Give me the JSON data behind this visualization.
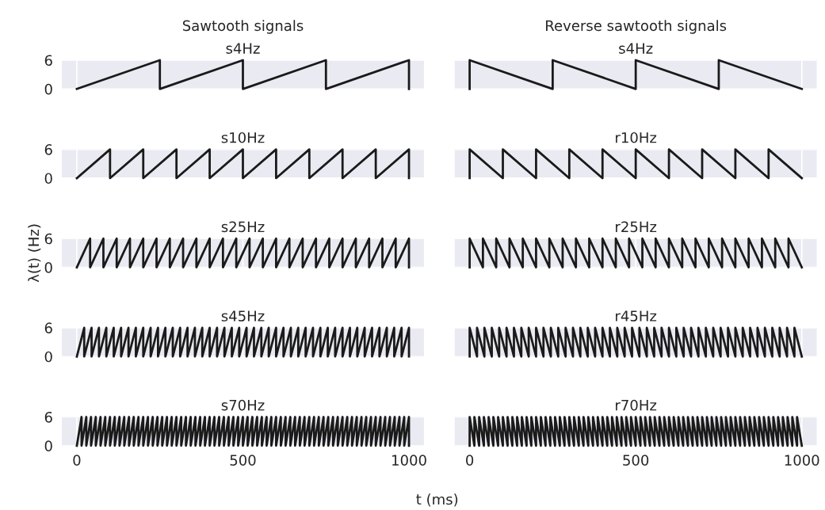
{
  "chart_data": [
    {
      "type": "line",
      "title": "Sawtooth signals",
      "subtitle": "s4Hz",
      "xlim": [
        -45,
        1045
      ],
      "ylim": [
        0,
        6
      ],
      "xticks": [
        0,
        500,
        1000
      ],
      "yticks": [
        0,
        6
      ],
      "grid": true,
      "tick_labels": "y",
      "series": [
        {
          "color": "#1a1a1a",
          "x": [
            0,
            250,
            250,
            500,
            500,
            750,
            750,
            1000,
            1000
          ],
          "values": [
            0,
            6,
            0,
            6,
            0,
            6,
            0,
            6,
            0
          ]
        }
      ]
    },
    {
      "type": "line",
      "title": "Reverse sawtooth signals",
      "subtitle": "s4Hz",
      "xlim": [
        -45,
        1045
      ],
      "ylim": [
        0,
        6
      ],
      "xticks": [
        0,
        500,
        1000
      ],
      "yticks": [
        0,
        6
      ],
      "grid": true,
      "tick_labels": false,
      "series": [
        {
          "color": "#1a1a1a",
          "x": [
            0,
            0,
            250,
            250,
            500,
            500,
            750,
            750,
            1000
          ],
          "values": [
            0,
            6,
            0,
            6,
            0,
            6,
            0,
            6,
            0
          ]
        }
      ]
    },
    {
      "type": "line",
      "title": "s10Hz",
      "xlim": [
        -45,
        1045
      ],
      "ylim": [
        0,
        6
      ],
      "xticks": [
        0,
        500,
        1000
      ],
      "yticks": [
        0,
        6
      ],
      "grid": true,
      "tick_labels": "y",
      "series": [
        {
          "color": "#1a1a1a",
          "x": [
            0,
            100,
            100,
            200,
            200,
            300,
            300,
            400,
            400,
            500,
            500,
            600,
            600,
            700,
            700,
            800,
            800,
            900,
            900,
            1000,
            1000
          ],
          "values": [
            0,
            6,
            0,
            6,
            0,
            6,
            0,
            6,
            0,
            6,
            0,
            6,
            0,
            6,
            0,
            6,
            0,
            6,
            0,
            6,
            0
          ]
        }
      ]
    },
    {
      "type": "line",
      "title": "r10Hz",
      "xlim": [
        -45,
        1045
      ],
      "ylim": [
        0,
        6
      ],
      "xticks": [
        0,
        500,
        1000
      ],
      "yticks": [
        0,
        6
      ],
      "grid": true,
      "tick_labels": false,
      "series": [
        {
          "color": "#1a1a1a",
          "x": [
            0,
            0,
            100,
            100,
            200,
            200,
            300,
            300,
            400,
            400,
            500,
            500,
            600,
            600,
            700,
            700,
            800,
            800,
            900,
            900,
            1000
          ],
          "values": [
            0,
            6,
            0,
            6,
            0,
            6,
            0,
            6,
            0,
            6,
            0,
            6,
            0,
            6,
            0,
            6,
            0,
            6,
            0,
            6,
            0
          ]
        }
      ]
    },
    {
      "type": "line",
      "title": "s25Hz",
      "ylabel": "λ(t) (Hz)",
      "xlim": [
        -45,
        1045
      ],
      "ylim": [
        0,
        6
      ],
      "xticks": [
        0,
        500,
        1000
      ],
      "yticks": [
        0,
        6
      ],
      "grid": true,
      "tick_labels": "y",
      "series": [
        {
          "color": "#1a1a1a",
          "x": [
            0,
            40,
            40,
            80,
            80,
            120,
            120,
            160,
            160,
            200,
            200,
            240,
            240,
            280,
            280,
            320,
            320,
            360,
            360,
            400,
            400,
            440,
            440,
            480,
            480,
            520,
            520,
            560,
            560,
            600,
            600,
            640,
            640,
            680,
            680,
            720,
            720,
            760,
            760,
            800,
            800,
            840,
            840,
            880,
            880,
            920,
            920,
            960,
            960,
            1000,
            1000
          ],
          "values": [
            0,
            6,
            0,
            6,
            0,
            6,
            0,
            6,
            0,
            6,
            0,
            6,
            0,
            6,
            0,
            6,
            0,
            6,
            0,
            6,
            0,
            6,
            0,
            6,
            0,
            6,
            0,
            6,
            0,
            6,
            0,
            6,
            0,
            6,
            0,
            6,
            0,
            6,
            0,
            6,
            0,
            6,
            0,
            6,
            0,
            6,
            0,
            6,
            0,
            6,
            0
          ]
        }
      ]
    },
    {
      "type": "line",
      "title": "r25Hz",
      "xlim": [
        -45,
        1045
      ],
      "ylim": [
        0,
        6
      ],
      "xticks": [
        0,
        500,
        1000
      ],
      "yticks": [
        0,
        6
      ],
      "grid": true,
      "tick_labels": false,
      "series": [
        {
          "color": "#1a1a1a",
          "x": [
            0,
            0,
            40,
            40,
            80,
            80,
            120,
            120,
            160,
            160,
            200,
            200,
            240,
            240,
            280,
            280,
            320,
            320,
            360,
            360,
            400,
            400,
            440,
            440,
            480,
            480,
            520,
            520,
            560,
            560,
            600,
            600,
            640,
            640,
            680,
            680,
            720,
            720,
            760,
            760,
            800,
            800,
            840,
            840,
            880,
            880,
            920,
            920,
            960,
            960,
            1000
          ],
          "values": [
            0,
            6,
            0,
            6,
            0,
            6,
            0,
            6,
            0,
            6,
            0,
            6,
            0,
            6,
            0,
            6,
            0,
            6,
            0,
            6,
            0,
            6,
            0,
            6,
            0,
            6,
            0,
            6,
            0,
            6,
            0,
            6,
            0,
            6,
            0,
            6,
            0,
            6,
            0,
            6,
            0,
            6,
            0,
            6,
            0,
            6,
            0,
            6,
            0,
            6,
            0
          ]
        }
      ]
    },
    {
      "type": "line",
      "title": "s45Hz",
      "xlim": [
        -45,
        1045
      ],
      "ylim": [
        0,
        6
      ],
      "xticks": [
        0,
        500,
        1000
      ],
      "yticks": [
        0,
        6
      ],
      "grid": true,
      "tick_labels": "y",
      "series": [
        {
          "color": "#1a1a1a",
          "x": [
            0,
            22.22,
            22.22,
            44.44,
            44.44,
            66.67,
            66.67,
            88.89,
            88.89,
            111.11,
            111.11,
            133.33,
            133.33,
            155.56,
            155.56,
            177.78,
            177.78,
            200,
            200,
            222.22,
            222.22,
            244.44,
            244.44,
            266.67,
            266.67,
            288.89,
            288.89,
            311.11,
            311.11,
            333.33,
            333.33,
            355.56,
            355.56,
            377.78,
            377.78,
            400,
            400,
            422.22,
            422.22,
            444.44,
            444.44,
            466.67,
            466.67,
            488.89,
            488.89,
            511.11,
            511.11,
            533.33,
            533.33,
            555.56,
            555.56,
            577.78,
            577.78,
            600,
            600,
            622.22,
            622.22,
            644.44,
            644.44,
            666.67,
            666.67,
            688.89,
            688.89,
            711.11,
            711.11,
            733.33,
            733.33,
            755.56,
            755.56,
            777.78,
            777.78,
            800,
            800,
            822.22,
            822.22,
            844.44,
            844.44,
            866.67,
            866.67,
            888.89,
            888.89,
            911.11,
            911.11,
            933.33,
            933.33,
            955.56,
            955.56,
            977.78,
            977.78,
            1000,
            1000
          ],
          "values": [
            0,
            6,
            0,
            6,
            0,
            6,
            0,
            6,
            0,
            6,
            0,
            6,
            0,
            6,
            0,
            6,
            0,
            6,
            0,
            6,
            0,
            6,
            0,
            6,
            0,
            6,
            0,
            6,
            0,
            6,
            0,
            6,
            0,
            6,
            0,
            6,
            0,
            6,
            0,
            6,
            0,
            6,
            0,
            6,
            0,
            6,
            0,
            6,
            0,
            6,
            0,
            6,
            0,
            6,
            0,
            6,
            0,
            6,
            0,
            6,
            0,
            6,
            0,
            6,
            0,
            6,
            0,
            6,
            0,
            6,
            0,
            6,
            0,
            6,
            0,
            6,
            0,
            6,
            0,
            6,
            0,
            6,
            0,
            6,
            0,
            6,
            0,
            6,
            0,
            6,
            0
          ]
        }
      ]
    },
    {
      "type": "line",
      "title": "r45Hz",
      "xlim": [
        -45,
        1045
      ],
      "ylim": [
        0,
        6
      ],
      "xticks": [
        0,
        500,
        1000
      ],
      "yticks": [
        0,
        6
      ],
      "grid": true,
      "tick_labels": false,
      "series": [
        {
          "color": "#1a1a1a",
          "x": [
            0,
            0,
            22.22,
            22.22,
            44.44,
            44.44,
            66.67,
            66.67,
            88.89,
            88.89,
            111.11,
            111.11,
            133.33,
            133.33,
            155.56,
            155.56,
            177.78,
            177.78,
            200,
            200,
            222.22,
            222.22,
            244.44,
            244.44,
            266.67,
            266.67,
            288.89,
            288.89,
            311.11,
            311.11,
            333.33,
            333.33,
            355.56,
            355.56,
            377.78,
            377.78,
            400,
            400,
            422.22,
            422.22,
            444.44,
            444.44,
            466.67,
            466.67,
            488.89,
            488.89,
            511.11,
            511.11,
            533.33,
            533.33,
            555.56,
            555.56,
            577.78,
            577.78,
            600,
            600,
            622.22,
            622.22,
            644.44,
            644.44,
            666.67,
            666.67,
            688.89,
            688.89,
            711.11,
            711.11,
            733.33,
            733.33,
            755.56,
            755.56,
            777.78,
            777.78,
            800,
            800,
            822.22,
            822.22,
            844.44,
            844.44,
            866.67,
            866.67,
            888.89,
            888.89,
            911.11,
            911.11,
            933.33,
            933.33,
            955.56,
            955.56,
            977.78,
            977.78,
            1000
          ],
          "values": [
            0,
            6,
            0,
            6,
            0,
            6,
            0,
            6,
            0,
            6,
            0,
            6,
            0,
            6,
            0,
            6,
            0,
            6,
            0,
            6,
            0,
            6,
            0,
            6,
            0,
            6,
            0,
            6,
            0,
            6,
            0,
            6,
            0,
            6,
            0,
            6,
            0,
            6,
            0,
            6,
            0,
            6,
            0,
            6,
            0,
            6,
            0,
            6,
            0,
            6,
            0,
            6,
            0,
            6,
            0,
            6,
            0,
            6,
            0,
            6,
            0,
            6,
            0,
            6,
            0,
            6,
            0,
            6,
            0,
            6,
            0,
            6,
            0,
            6,
            0,
            6,
            0,
            6,
            0,
            6,
            0,
            6,
            0,
            6,
            0,
            6,
            0,
            6,
            0,
            6,
            0
          ]
        }
      ]
    },
    {
      "type": "line",
      "title": "s70Hz",
      "xlabel": "t (ms)",
      "xlim": [
        -45,
        1045
      ],
      "ylim": [
        0,
        6
      ],
      "xticks": [
        0,
        500,
        1000
      ],
      "yticks": [
        0,
        6
      ],
      "grid": true,
      "series": [
        {
          "color": "#1a1a1a",
          "x": [
            0,
            14.29,
            14.29,
            28.57,
            28.57,
            42.86,
            42.86,
            57.14,
            57.14,
            71.43,
            71.43,
            85.71,
            85.71,
            100,
            100,
            114.29,
            114.29,
            128.57,
            128.57,
            142.86,
            142.86,
            157.14,
            157.14,
            171.43,
            171.43,
            185.71,
            185.71,
            200,
            200,
            214.29,
            214.29,
            228.57,
            228.57,
            242.86,
            242.86,
            257.14,
            257.14,
            271.43,
            271.43,
            285.71,
            285.71,
            300,
            300,
            314.29,
            314.29,
            328.57,
            328.57,
            342.86,
            342.86,
            357.14,
            357.14,
            371.43,
            371.43,
            385.71,
            385.71,
            400,
            400,
            414.29,
            414.29,
            428.57,
            428.57,
            442.86,
            442.86,
            457.14,
            457.14,
            471.43,
            471.43,
            485.71,
            485.71,
            500,
            500,
            514.29,
            514.29,
            528.57,
            528.57,
            542.86,
            542.86,
            557.14,
            557.14,
            571.43,
            571.43,
            585.71,
            585.71,
            600,
            600,
            614.29,
            614.29,
            628.57,
            628.57,
            642.86,
            642.86,
            657.14,
            657.14,
            671.43,
            671.43,
            685.71,
            685.71,
            700,
            700,
            714.29,
            714.29,
            728.57,
            728.57,
            742.86,
            742.86,
            757.14,
            757.14,
            771.43,
            771.43,
            785.71,
            785.71,
            800,
            800,
            814.29,
            814.29,
            828.57,
            828.57,
            842.86,
            842.86,
            857.14,
            857.14,
            871.43,
            871.43,
            885.71,
            885.71,
            900,
            900,
            914.29,
            914.29,
            928.57,
            928.57,
            942.86,
            942.86,
            957.14,
            957.14,
            971.43,
            971.43,
            985.71,
            985.71,
            1000,
            1000
          ],
          "values": [
            0,
            6,
            0,
            6,
            0,
            6,
            0,
            6,
            0,
            6,
            0,
            6,
            0,
            6,
            0,
            6,
            0,
            6,
            0,
            6,
            0,
            6,
            0,
            6,
            0,
            6,
            0,
            6,
            0,
            6,
            0,
            6,
            0,
            6,
            0,
            6,
            0,
            6,
            0,
            6,
            0,
            6,
            0,
            6,
            0,
            6,
            0,
            6,
            0,
            6,
            0,
            6,
            0,
            6,
            0,
            6,
            0,
            6,
            0,
            6,
            0,
            6,
            0,
            6,
            0,
            6,
            0,
            6,
            0,
            6,
            0,
            6,
            0,
            6,
            0,
            6,
            0,
            6,
            0,
            6,
            0,
            6,
            0,
            6,
            0,
            6,
            0,
            6,
            0,
            6,
            0,
            6,
            0,
            6,
            0,
            6,
            0,
            6,
            0,
            6,
            0,
            6,
            0,
            6,
            0,
            6,
            0,
            6,
            0,
            6,
            0,
            6,
            0,
            6,
            0,
            6,
            0,
            6,
            0,
            6,
            0,
            6,
            0,
            6,
            0,
            6,
            0,
            6,
            0,
            6,
            0,
            6,
            0,
            6,
            0,
            6,
            0,
            6,
            0,
            6,
            0
          ]
        }
      ]
    },
    {
      "type": "line",
      "title": "r70Hz",
      "xlim": [
        -45,
        1045
      ],
      "ylim": [
        0,
        6
      ],
      "xticks": [
        0,
        500,
        1000
      ],
      "yticks": [
        0,
        6
      ],
      "grid": true,
      "tick_labels": "x",
      "series": [
        {
          "color": "#1a1a1a",
          "x": [
            0,
            0,
            14.29,
            14.29,
            28.57,
            28.57,
            42.86,
            42.86,
            57.14,
            57.14,
            71.43,
            71.43,
            85.71,
            85.71,
            100,
            100,
            114.29,
            114.29,
            128.57,
            128.57,
            142.86,
            142.86,
            157.14,
            157.14,
            171.43,
            171.43,
            185.71,
            185.71,
            200,
            200,
            214.29,
            214.29,
            228.57,
            228.57,
            242.86,
            242.86,
            257.14,
            257.14,
            271.43,
            271.43,
            285.71,
            285.71,
            300,
            300,
            314.29,
            314.29,
            328.57,
            328.57,
            342.86,
            342.86,
            357.14,
            357.14,
            371.43,
            371.43,
            385.71,
            385.71,
            400,
            400,
            414.29,
            414.29,
            428.57,
            428.57,
            442.86,
            442.86,
            457.14,
            457.14,
            471.43,
            471.43,
            485.71,
            485.71,
            500,
            500,
            514.29,
            514.29,
            528.57,
            528.57,
            542.86,
            542.86,
            557.14,
            557.14,
            571.43,
            571.43,
            585.71,
            585.71,
            600,
            600,
            614.29,
            614.29,
            628.57,
            628.57,
            642.86,
            642.86,
            657.14,
            657.14,
            671.43,
            671.43,
            685.71,
            685.71,
            700,
            700,
            714.29,
            714.29,
            728.57,
            728.57,
            742.86,
            742.86,
            757.14,
            757.14,
            771.43,
            771.43,
            785.71,
            785.71,
            800,
            800,
            814.29,
            814.29,
            828.57,
            828.57,
            842.86,
            842.86,
            857.14,
            857.14,
            871.43,
            871.43,
            885.71,
            885.71,
            900,
            900,
            914.29,
            914.29,
            928.57,
            928.57,
            942.86,
            942.86,
            957.14,
            957.14,
            971.43,
            971.43,
            985.71,
            985.71,
            1000
          ],
          "values": [
            0,
            6,
            0,
            6,
            0,
            6,
            0,
            6,
            0,
            6,
            0,
            6,
            0,
            6,
            0,
            6,
            0,
            6,
            0,
            6,
            0,
            6,
            0,
            6,
            0,
            6,
            0,
            6,
            0,
            6,
            0,
            6,
            0,
            6,
            0,
            6,
            0,
            6,
            0,
            6,
            0,
            6,
            0,
            6,
            0,
            6,
            0,
            6,
            0,
            6,
            0,
            6,
            0,
            6,
            0,
            6,
            0,
            6,
            0,
            6,
            0,
            6,
            0,
            6,
            0,
            6,
            0,
            6,
            0,
            6,
            0,
            6,
            0,
            6,
            0,
            6,
            0,
            6,
            0,
            6,
            0,
            6,
            0,
            6,
            0,
            6,
            0,
            6,
            0,
            6,
            0,
            6,
            0,
            6,
            0,
            6,
            0,
            6,
            0,
            6,
            0,
            6,
            0,
            6,
            0,
            6,
            0,
            6,
            0,
            6,
            0,
            6,
            0,
            6,
            0,
            6,
            0,
            6,
            0,
            6,
            0,
            6,
            0,
            6,
            0,
            6,
            0,
            6,
            0,
            6,
            0,
            6,
            0,
            6,
            0,
            6,
            0,
            6,
            0,
            6,
            0
          ]
        }
      ]
    }
  ]
}
